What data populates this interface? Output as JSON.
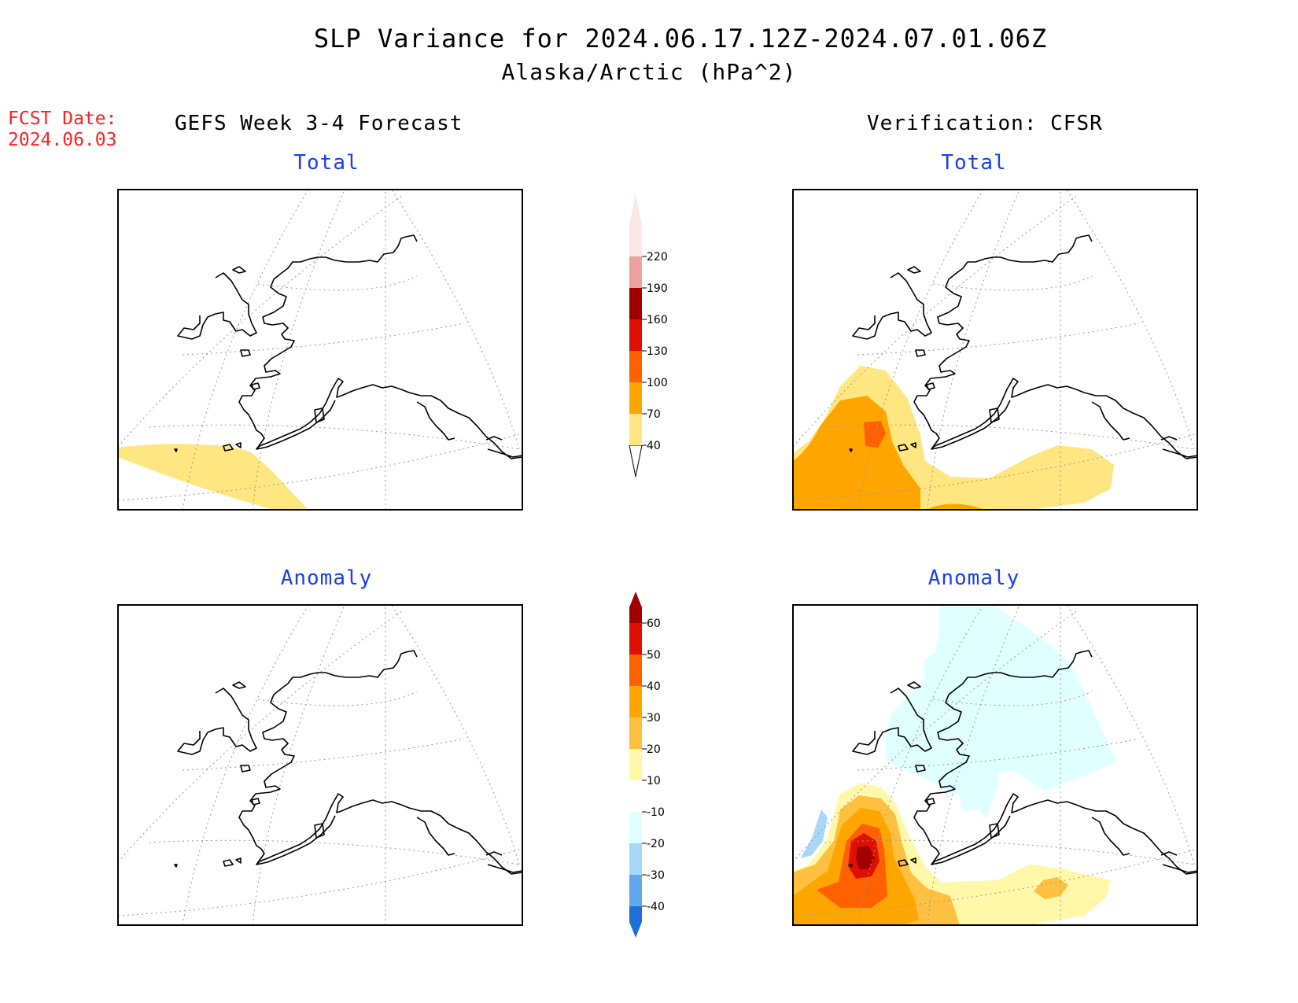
{
  "title": {
    "line1": "SLP Variance for 2024.06.17.12Z-2024.07.01.06Z",
    "line2": "Alaska/Arctic (hPa^2)"
  },
  "forecast_date": {
    "label": "FCST Date:",
    "value": "2024.06.03"
  },
  "columns": {
    "left_header": "GEFS Week 3-4 Forecast",
    "right_header": "Verification: CFSR"
  },
  "panels": [
    {
      "id": "gefs-total",
      "title": "Total",
      "field": "total",
      "shading": "forecast total: yellow 40-70 band over southwest corner"
    },
    {
      "id": "cfsr-total",
      "title": "Total",
      "field": "total",
      "shading": "yellow/orange maximum over Bering Sea with 100-130 core"
    },
    {
      "id": "gefs-anomaly",
      "title": "Anomaly",
      "field": "anomaly",
      "shading": "none"
    },
    {
      "id": "cfsr-anomaly",
      "title": "Anomaly",
      "field": "anomaly",
      "shading": "positive maximum >60 over Bering Sea; weak negative over Arctic"
    }
  ],
  "colorbars": {
    "total": {
      "labels": [
        "40",
        "70",
        "100",
        "130",
        "160",
        "190",
        "220"
      ],
      "colors": [
        "#ffe680",
        "#ffa500",
        "#ff6000",
        "#e01000",
        "#a00000",
        "#f0a0a0",
        "#fde6e6"
      ]
    },
    "anomaly": {
      "labels": [
        "60",
        "50",
        "40",
        "30",
        "20",
        "10",
        "-10",
        "-20",
        "-30",
        "-40"
      ],
      "colors": [
        "#a00000",
        "#e01000",
        "#ff6000",
        "#ffa500",
        "#ffc040",
        "#fff8a8",
        "#ffffff",
        "#e0ffff",
        "#a8d8f8",
        "#60a8f0",
        "#1e6fd8"
      ]
    }
  },
  "colors": {
    "title_text": "#000000",
    "date_text": "#ff2020",
    "panel_title": "#1a3cf0"
  }
}
